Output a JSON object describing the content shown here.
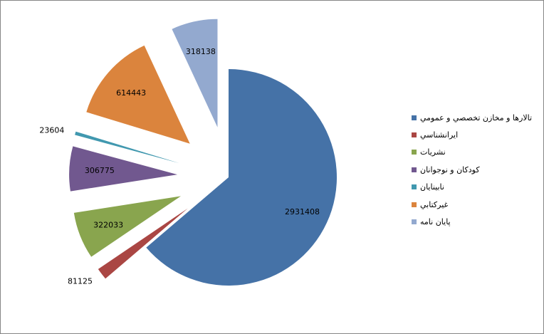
{
  "chart_data": {
    "type": "pie",
    "title": "",
    "exploded": true,
    "start_angle_deg": 0,
    "direction": "clockwise",
    "categories": [
      "تالارها و مخازن تخصصي و عمومي",
      "ايرانشناسي",
      "نشريات",
      "كودكان و نوجوانان",
      "نابينايان",
      "غيركتابي",
      "پايان نامه"
    ],
    "values": [
      2931408,
      81125,
      322033,
      306775,
      23604,
      614443,
      318138
    ],
    "labels": [
      "2931408",
      "81125",
      "322033",
      "306775",
      "23604",
      "614443",
      "318138"
    ],
    "colors": [
      "#4572A7",
      "#AA4643",
      "#89A54E",
      "#71588F",
      "#4198AF",
      "#DB843D",
      "#93A9CF"
    ],
    "legend_position": "right"
  }
}
